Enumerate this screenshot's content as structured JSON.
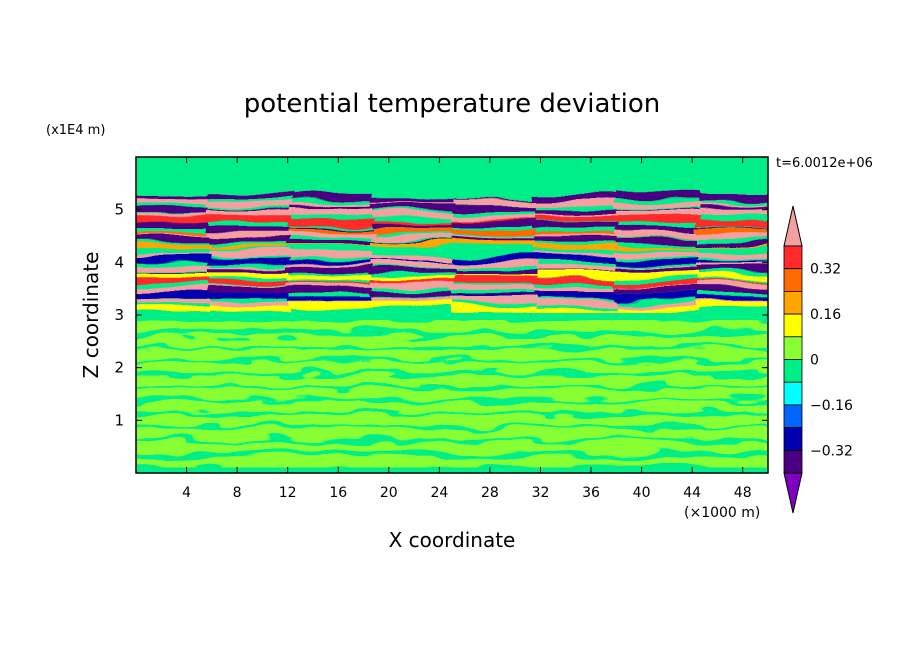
{
  "chart_data": {
    "type": "heatmap",
    "title": "potential temperature deviation",
    "xlabel": "X coordinate",
    "ylabel": "Z coordinate",
    "x_unit": "(×1000 m)",
    "y_unit": "(x1E4 m)",
    "time_label": "t=6.0012e+06",
    "xlim": [
      0,
      50
    ],
    "ylim": [
      0,
      6
    ],
    "x_ticks": [
      4,
      8,
      12,
      16,
      20,
      24,
      28,
      32,
      36,
      40,
      44,
      48
    ],
    "x_tick_labels": [
      "4",
      "8",
      "12",
      "16",
      "20",
      "24",
      "28",
      "32",
      "36",
      "40",
      "44",
      "48"
    ],
    "y_ticks": [
      1,
      2,
      3,
      4,
      5
    ],
    "y_tick_labels": [
      "1",
      "2",
      "3",
      "4",
      "5"
    ],
    "colorbar": {
      "levels": [
        -0.4,
        -0.32,
        -0.24,
        -0.16,
        -0.08,
        0,
        0.08,
        0.16,
        0.24,
        0.32,
        0.4
      ],
      "tick_values": [
        0.32,
        0.16,
        0,
        -0.16,
        -0.32
      ],
      "tick_labels": [
        "0.32",
        "0.16",
        "0",
        "−0.16",
        "−0.32"
      ],
      "colors_high_to_low": [
        "#f4a0a0",
        "#ff2a2a",
        "#ff6a00",
        "#ffa500",
        "#ffff00",
        "#88ff33",
        "#00ee88",
        "#00ffff",
        "#0066ff",
        "#0000b0",
        "#4b0082",
        "#8000c0"
      ],
      "extend": "both"
    },
    "bands": [
      {
        "z": 5.28,
        "value": -0.08
      },
      {
        "z": 5.2,
        "value": -0.4
      },
      {
        "z": 5.1,
        "value": 0.4
      },
      {
        "z": 5.0,
        "value": -0.4
      },
      {
        "z": 4.9,
        "value": 0.4
      },
      {
        "z": 4.78,
        "value": 0.32
      },
      {
        "z": 4.68,
        "value": -0.4
      },
      {
        "z": 4.58,
        "value": 0.24
      },
      {
        "z": 4.5,
        "value": 0.4
      },
      {
        "z": 4.4,
        "value": -0.4
      },
      {
        "z": 4.3,
        "value": 0.16
      },
      {
        "z": 4.2,
        "value": -0.08
      },
      {
        "z": 4.1,
        "value": 0.4
      },
      {
        "z": 4.02,
        "value": -0.32
      },
      {
        "z": 3.92,
        "value": 0.4
      },
      {
        "z": 3.82,
        "value": -0.4
      },
      {
        "z": 3.72,
        "value": 0.08
      },
      {
        "z": 3.62,
        "value": 0.32
      },
      {
        "z": 3.52,
        "value": 0.4
      },
      {
        "z": 3.42,
        "value": -0.4
      },
      {
        "z": 3.33,
        "value": -0.32
      },
      {
        "z": 3.25,
        "value": 0.4
      },
      {
        "z": 3.15,
        "value": 0.08
      }
    ]
  }
}
